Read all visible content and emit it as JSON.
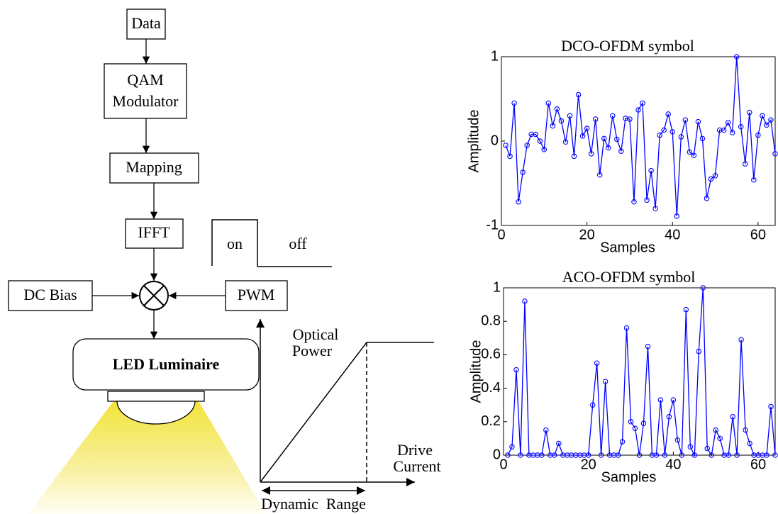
{
  "diagram": {
    "nodes": [
      {
        "lines": [
          "Data"
        ]
      },
      {
        "lines": [
          "QAM",
          "Modulator"
        ]
      },
      {
        "lines": [
          "Mapping"
        ]
      },
      {
        "lines": [
          "IFFT"
        ]
      },
      {
        "lines": [
          "DC Bias"
        ]
      },
      {
        "lines": [
          "PWM"
        ]
      },
      {
        "lines": [
          "LED Luminaire"
        ]
      }
    ],
    "pwm": {
      "on": "on",
      "off": "off"
    },
    "transfer": {
      "y_label": [
        "Optical",
        "Power"
      ],
      "x_label": [
        "Drive",
        "Current"
      ],
      "range_label": "Dynamic  Range"
    }
  },
  "chart_data": [
    {
      "type": "line",
      "title": "DCO-OFDM symbol",
      "xlabel": "Samples",
      "ylabel": "Amplitude",
      "color": "#0000ff",
      "xlim": [
        0,
        64
      ],
      "xticks": [
        0,
        20,
        40,
        60
      ],
      "ylim": [
        -1,
        1
      ],
      "yticks": [
        -1,
        0,
        1
      ],
      "x": [
        1,
        2,
        3,
        4,
        5,
        6,
        7,
        8,
        9,
        10,
        11,
        12,
        13,
        14,
        15,
        16,
        17,
        18,
        19,
        20,
        21,
        22,
        23,
        24,
        25,
        26,
        27,
        28,
        29,
        30,
        31,
        32,
        33,
        34,
        35,
        36,
        37,
        38,
        39,
        40,
        41,
        42,
        43,
        44,
        45,
        46,
        47,
        48,
        49,
        50,
        51,
        52,
        53,
        54,
        55,
        56,
        57,
        58,
        59,
        60,
        61,
        62,
        63,
        64
      ],
      "values": [
        -0.05,
        -0.18,
        0.45,
        -0.72,
        -0.37,
        -0.05,
        0.08,
        0.08,
        0,
        -0.1,
        0.45,
        0.18,
        0.38,
        0.24,
        -0.01,
        0.3,
        -0.18,
        0.55,
        0.06,
        0.15,
        -0.15,
        0.26,
        -0.4,
        0.03,
        -0.08,
        0.3,
        0.02,
        -0.12,
        0.27,
        0.26,
        -0.72,
        0.37,
        0.45,
        -0.7,
        -0.35,
        -0.8,
        0.07,
        0.13,
        0.32,
        0.11,
        -0.89,
        0.05,
        0.25,
        -0.13,
        -0.17,
        0.23,
        0.03,
        -0.68,
        -0.45,
        -0.41,
        0.13,
        0.13,
        0.22,
        0.1,
        1,
        0.17,
        -0.27,
        0.34,
        -0.46,
        0.07,
        0.3,
        0.19,
        0.25,
        -0.15
      ]
    },
    {
      "type": "line",
      "title": "ACO-OFDM symbol",
      "xlabel": "Samples",
      "ylabel": "Amplitude",
      "color": "#0000ff",
      "xlim": [
        0,
        64
      ],
      "xticks": [
        0,
        20,
        40,
        60
      ],
      "ylim": [
        0,
        1
      ],
      "yticks": [
        0,
        0.2,
        0.4,
        0.6,
        0.8,
        1
      ],
      "x": [
        1,
        2,
        3,
        4,
        5,
        6,
        7,
        8,
        9,
        10,
        11,
        12,
        13,
        14,
        15,
        16,
        17,
        18,
        19,
        20,
        21,
        22,
        23,
        24,
        25,
        26,
        27,
        28,
        29,
        30,
        31,
        32,
        33,
        34,
        35,
        36,
        37,
        38,
        39,
        40,
        41,
        42,
        43,
        44,
        45,
        46,
        47,
        48,
        49,
        50,
        51,
        52,
        53,
        54,
        55,
        56,
        57,
        58,
        59,
        60,
        61,
        62,
        63,
        64
      ],
      "values": [
        0,
        0.05,
        0.51,
        0,
        0.92,
        0,
        0,
        0,
        0,
        0.15,
        0,
        0,
        0.07,
        0,
        0,
        0,
        0,
        0,
        0,
        0,
        0.3,
        0.55,
        0,
        0.44,
        0,
        0,
        0,
        0.08,
        0.76,
        0.2,
        0.16,
        0,
        0.19,
        0.65,
        0,
        0,
        0.33,
        0,
        0.23,
        0.33,
        0.09,
        0,
        0.87,
        0.05,
        0,
        0.62,
        1,
        0.04,
        0,
        0.15,
        0.1,
        0,
        0,
        0.23,
        0,
        0.69,
        0.15,
        0.07,
        0,
        0,
        0,
        0,
        0.29,
        0
      ]
    }
  ]
}
